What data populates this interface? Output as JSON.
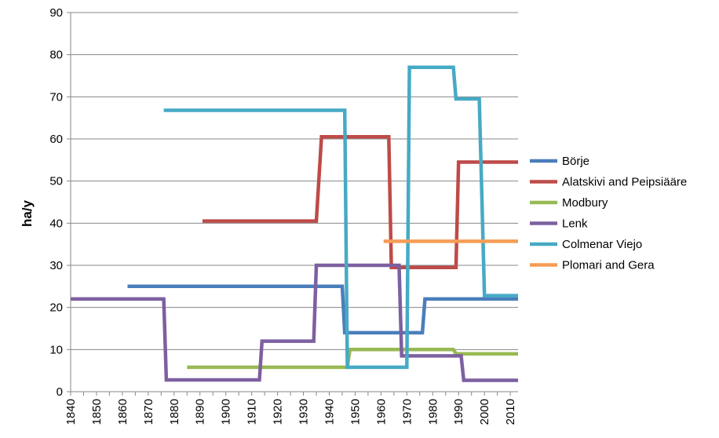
{
  "chart_data": {
    "type": "line",
    "title": "",
    "xlabel": "",
    "ylabel": "ha/y",
    "xlim": [
      1840,
      2013
    ],
    "ylim": [
      0,
      90
    ],
    "x_ticks": [
      "1840",
      "1850",
      "1860",
      "1870",
      "1880",
      "1890",
      "1900",
      "1910",
      "1920",
      "1930",
      "1940",
      "1950",
      "1960",
      "1970",
      "1980",
      "1990",
      "2000",
      "2010"
    ],
    "y_ticks": [
      "0",
      "10",
      "20",
      "30",
      "40",
      "50",
      "60",
      "70",
      "80",
      "90"
    ],
    "grid": "horizontal",
    "legend_position": "right",
    "series": [
      {
        "name": "Börje",
        "color": "#4A7EBB",
        "points": [
          [
            1862,
            25
          ],
          [
            1945,
            25
          ],
          [
            1946,
            14
          ],
          [
            1976,
            14
          ],
          [
            1977,
            22
          ],
          [
            2013,
            22
          ]
        ]
      },
      {
        "name": "Alatskivi and Peipsiääre",
        "color": "#BE4B48",
        "points": [
          [
            1891,
            40.5
          ],
          [
            1935,
            40.5
          ],
          [
            1937,
            60.5
          ],
          [
            1963,
            60.5
          ],
          [
            1964,
            29.5
          ],
          [
            1989,
            29.5
          ],
          [
            1990,
            54.5
          ],
          [
            2013,
            54.5
          ]
        ]
      },
      {
        "name": "Modbury",
        "color": "#98B954",
        "points": [
          [
            1885,
            5.8
          ],
          [
            1947,
            5.8
          ],
          [
            1948,
            10
          ],
          [
            1988,
            10
          ],
          [
            1989,
            9
          ],
          [
            2013,
            9
          ]
        ]
      },
      {
        "name": "Lenk",
        "color": "#7D60A0",
        "points": [
          [
            1840,
            22
          ],
          [
            1876,
            22
          ],
          [
            1877,
            2.8
          ],
          [
            1913,
            2.8
          ],
          [
            1914,
            12
          ],
          [
            1934,
            12
          ],
          [
            1935,
            30
          ],
          [
            1967,
            30
          ],
          [
            1968,
            8.5
          ],
          [
            1991,
            8.5
          ],
          [
            1992,
            2.7
          ],
          [
            2013,
            2.7
          ]
        ]
      },
      {
        "name": "Colmenar Viejo",
        "color": "#46AAC5",
        "points": [
          [
            1876,
            66.8
          ],
          [
            1946,
            66.8
          ],
          [
            1947,
            5.8
          ],
          [
            1970,
            5.8
          ],
          [
            1971,
            77
          ],
          [
            1988,
            77
          ],
          [
            1989,
            69.5
          ],
          [
            1998,
            69.5
          ],
          [
            2000,
            22.8
          ],
          [
            2013,
            22.8
          ]
        ]
      },
      {
        "name": "Plomari and Gera",
        "color": "#F59D56",
        "points": [
          [
            1961,
            35.7
          ],
          [
            2013,
            35.7
          ]
        ]
      }
    ]
  }
}
